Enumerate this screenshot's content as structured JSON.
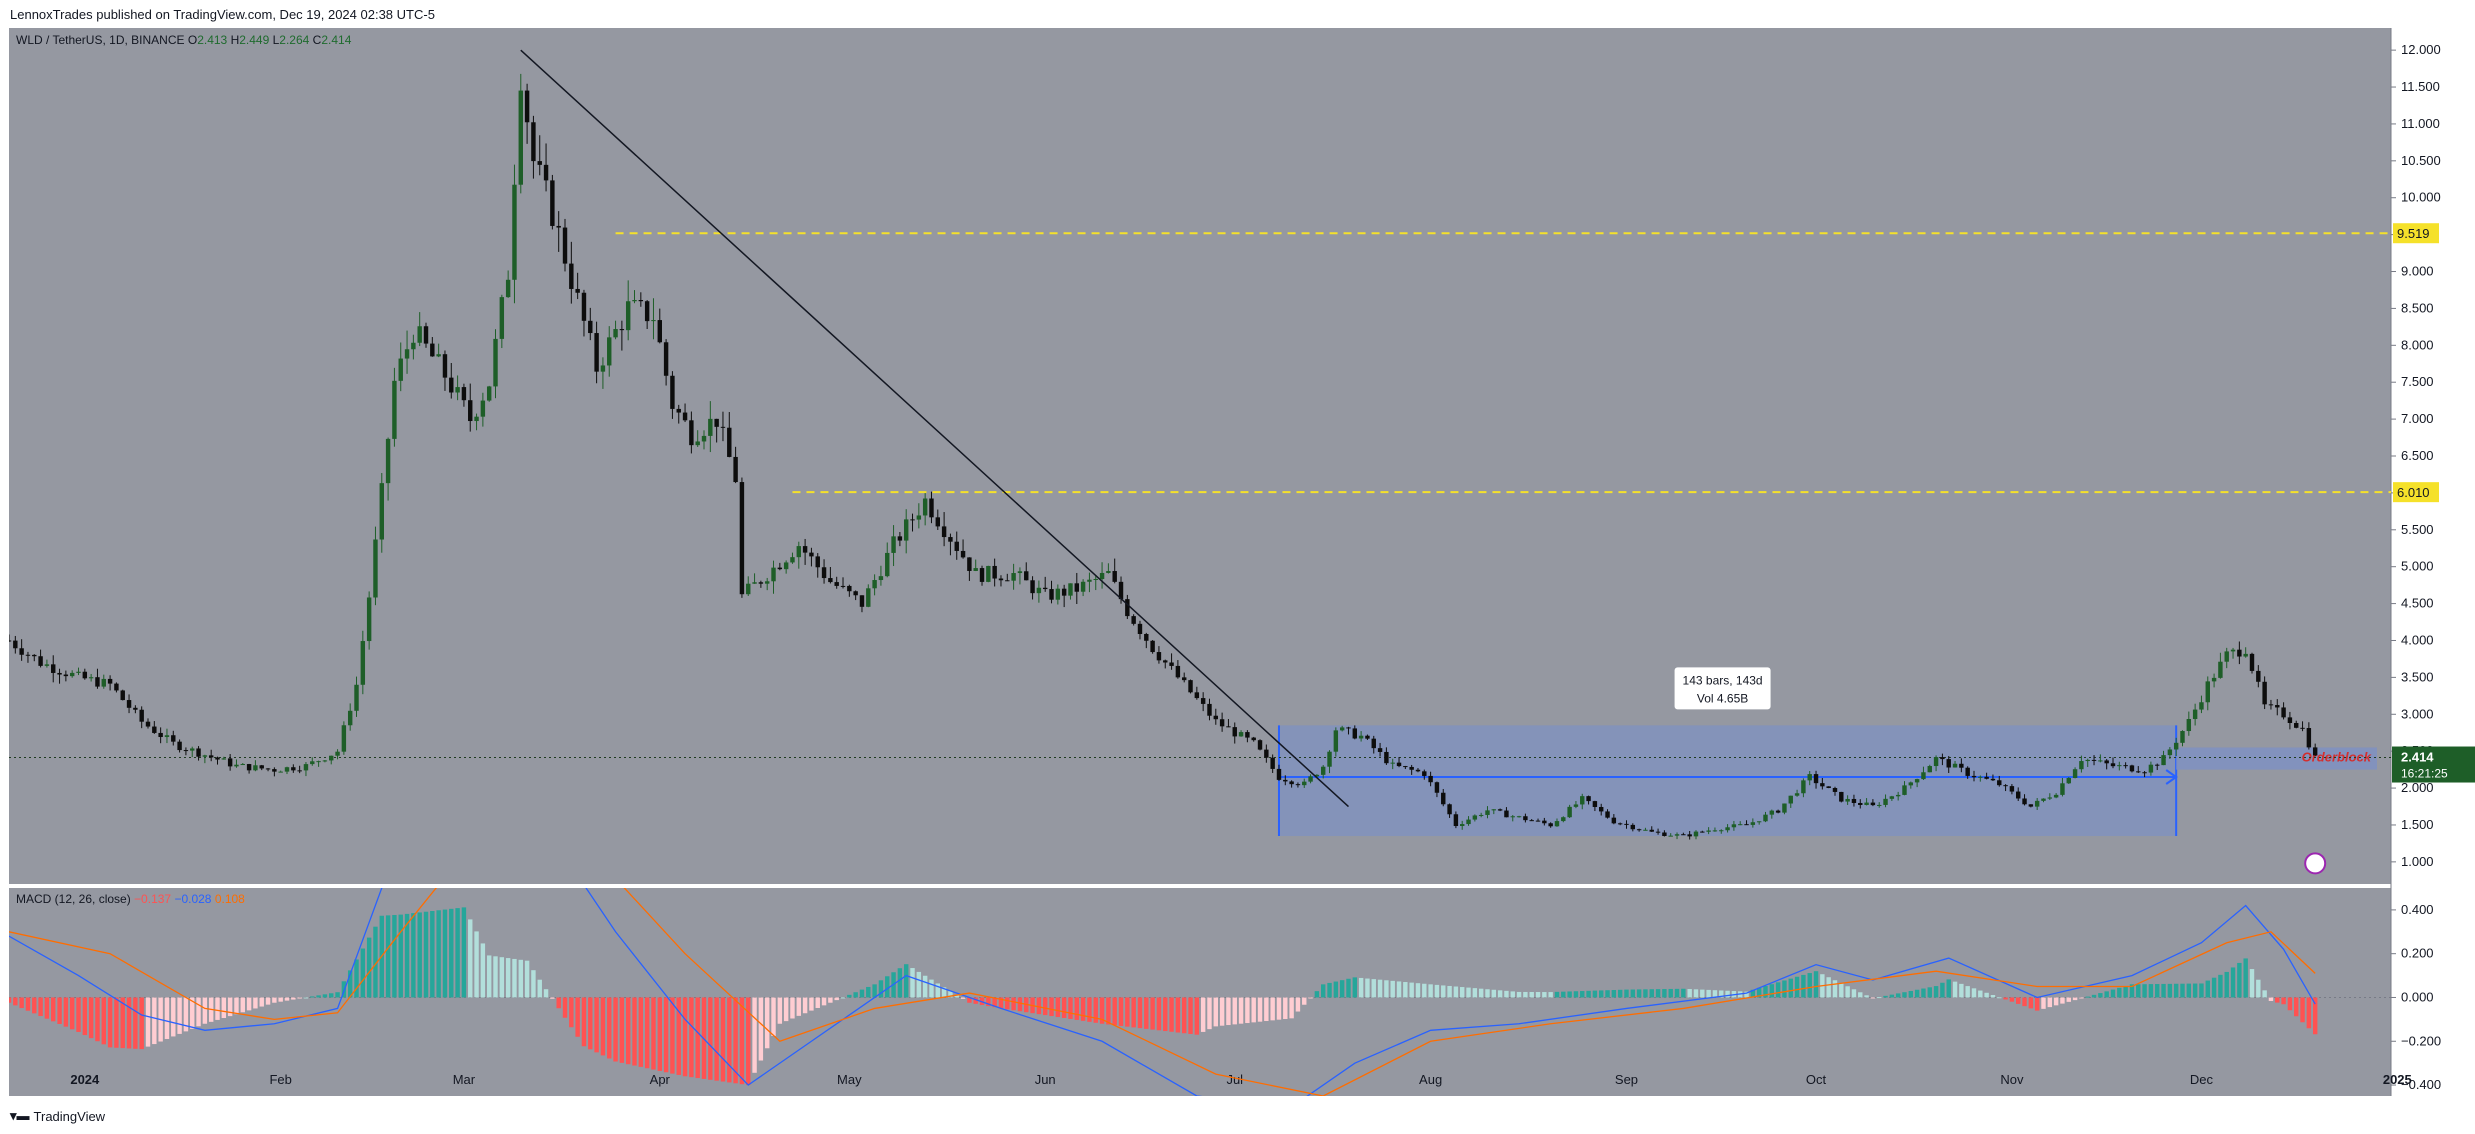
{
  "header": {
    "published": "LennoxTrades published on TradingView.com, Dec 19, 2024 02:38 UTC-5"
  },
  "legend": {
    "symbol": "WLD / TetherUS, 1D, BINANCE",
    "o_label": "O",
    "o_value": "2.413",
    "h_label": "H",
    "h_value": "2.449",
    "l_label": "L",
    "l_value": "2.264",
    "c_label": "C",
    "c_value": "2.414"
  },
  "macd_legend": {
    "label": "MACD (12, 26, close)",
    "hist": "−0.137",
    "macd": "−0.028",
    "signal": "0.108"
  },
  "footer": {
    "brand": "TradingView"
  },
  "colors": {
    "background": "#9598a1",
    "up": "#1e5e28",
    "down": "#0d0d0d",
    "level_line": "#f5e12a",
    "range_box": "#7f91c2",
    "range_border": "#2962ff",
    "macd_line": "#2962ff",
    "signal_line": "#ff6d00",
    "hist_up_strong": "#26a69a",
    "hist_up_weak": "#b2dfdb",
    "hist_down_strong": "#ff5252",
    "hist_down_weak": "#ffcdd2",
    "last_price_bg": "#1e5e28"
  },
  "chart_data": {
    "type": "candlestick",
    "symbol": "WLD / TetherUS",
    "timeframe": "1D",
    "exchange": "BINANCE",
    "x_range": [
      "2023-12-20",
      "2024-12-31"
    ],
    "price_axis": {
      "min": 0.7,
      "max": 12.3,
      "ticks": [
        "12.000",
        "11.500",
        "11.000",
        "10.500",
        "10.000",
        "9.500",
        "9.000",
        "8.500",
        "8.000",
        "7.500",
        "7.000",
        "6.500",
        "6.000",
        "5.500",
        "5.000",
        "4.500",
        "4.000",
        "3.500",
        "3.000",
        "2.500",
        "2.000",
        "1.500",
        "1.000"
      ]
    },
    "time_axis": {
      "labels": [
        {
          "date": "2024-01-01",
          "text": "2024"
        },
        {
          "date": "2024-02-01",
          "text": "Feb"
        },
        {
          "date": "2024-03-01",
          "text": "Mar"
        },
        {
          "date": "2024-04-01",
          "text": "Apr"
        },
        {
          "date": "2024-05-01",
          "text": "May"
        },
        {
          "date": "2024-06-01",
          "text": "Jun"
        },
        {
          "date": "2024-07-01",
          "text": "Jul"
        },
        {
          "date": "2024-08-01",
          "text": "Aug"
        },
        {
          "date": "2024-09-01",
          "text": "Sep"
        },
        {
          "date": "2024-10-01",
          "text": "Oct"
        },
        {
          "date": "2024-11-01",
          "text": "Nov"
        },
        {
          "date": "2024-12-01",
          "text": "Dec"
        },
        {
          "date": "2025-01-01",
          "text": "2025"
        }
      ]
    },
    "close_path": [
      [
        "2023-12-20",
        4.0
      ],
      [
        "2023-12-25",
        3.7
      ],
      [
        "2023-12-31",
        3.5
      ],
      [
        "2024-01-05",
        3.4
      ],
      [
        "2024-01-10",
        2.9
      ],
      [
        "2024-01-15",
        2.6
      ],
      [
        "2024-01-20",
        2.45
      ],
      [
        "2024-01-25",
        2.3
      ],
      [
        "2024-01-31",
        2.25
      ],
      [
        "2024-02-05",
        2.3
      ],
      [
        "2024-02-10",
        2.5
      ],
      [
        "2024-02-13",
        3.4
      ],
      [
        "2024-02-15",
        4.6
      ],
      [
        "2024-02-17",
        6.0
      ],
      [
        "2024-02-19",
        7.5
      ],
      [
        "2024-02-22",
        8.2
      ],
      [
        "2024-02-27",
        7.6
      ],
      [
        "2024-03-02",
        7.0
      ],
      [
        "2024-03-05",
        7.5
      ],
      [
        "2024-03-08",
        9.0
      ],
      [
        "2024-03-10",
        11.7
      ],
      [
        "2024-03-12",
        10.5
      ],
      [
        "2024-03-15",
        9.8
      ],
      [
        "2024-03-19",
        8.6
      ],
      [
        "2024-03-22",
        7.7
      ],
      [
        "2024-03-27",
        8.5
      ],
      [
        "2024-03-31",
        8.4
      ],
      [
        "2024-04-03",
        7.2
      ],
      [
        "2024-04-06",
        6.8
      ],
      [
        "2024-04-10",
        7.0
      ],
      [
        "2024-04-13",
        6.2
      ],
      [
        "2024-04-14",
        4.6
      ],
      [
        "2024-04-18",
        4.9
      ],
      [
        "2024-04-23",
        5.3
      ],
      [
        "2024-04-28",
        4.8
      ],
      [
        "2024-05-03",
        4.5
      ],
      [
        "2024-05-08",
        5.3
      ],
      [
        "2024-05-13",
        5.9
      ],
      [
        "2024-05-17",
        5.4
      ],
      [
        "2024-05-21",
        4.9
      ],
      [
        "2024-05-27",
        4.9
      ],
      [
        "2024-06-01",
        4.6
      ],
      [
        "2024-06-06",
        4.7
      ],
      [
        "2024-06-11",
        4.9
      ],
      [
        "2024-06-14",
        4.4
      ],
      [
        "2024-06-18",
        3.9
      ],
      [
        "2024-06-23",
        3.4
      ],
      [
        "2024-06-28",
        2.9
      ],
      [
        "2024-07-04",
        2.6
      ],
      [
        "2024-07-08",
        2.15
      ],
      [
        "2024-07-12",
        2.05
      ],
      [
        "2024-07-15",
        2.3
      ],
      [
        "2024-07-17",
        2.8
      ],
      [
        "2024-07-21",
        2.7
      ],
      [
        "2024-07-26",
        2.3
      ],
      [
        "2024-07-31",
        2.2
      ],
      [
        "2024-08-05",
        1.5
      ],
      [
        "2024-08-10",
        1.7
      ],
      [
        "2024-08-15",
        1.6
      ],
      [
        "2024-08-20",
        1.5
      ],
      [
        "2024-08-25",
        1.85
      ],
      [
        "2024-08-30",
        1.55
      ],
      [
        "2024-09-05",
        1.4
      ],
      [
        "2024-09-10",
        1.35
      ],
      [
        "2024-09-15",
        1.45
      ],
      [
        "2024-09-20",
        1.5
      ],
      [
        "2024-09-25",
        1.7
      ],
      [
        "2024-09-30",
        2.15
      ],
      [
        "2024-10-05",
        1.85
      ],
      [
        "2024-10-10",
        1.75
      ],
      [
        "2024-10-15",
        2.0
      ],
      [
        "2024-10-20",
        2.4
      ],
      [
        "2024-10-25",
        2.2
      ],
      [
        "2024-10-30",
        2.05
      ],
      [
        "2024-11-04",
        1.75
      ],
      [
        "2024-11-08",
        1.95
      ],
      [
        "2024-11-12",
        2.4
      ],
      [
        "2024-11-17",
        2.3
      ],
      [
        "2024-11-22",
        2.25
      ],
      [
        "2024-11-25",
        2.4
      ],
      [
        "2024-11-29",
        2.9
      ],
      [
        "2024-12-02",
        3.4
      ],
      [
        "2024-12-05",
        3.8
      ],
      [
        "2024-12-08",
        3.9
      ],
      [
        "2024-12-11",
        3.1
      ],
      [
        "2024-12-14",
        3.0
      ],
      [
        "2024-12-17",
        2.8
      ],
      [
        "2024-12-19",
        2.414
      ]
    ],
    "levels": [
      {
        "price": 9.519,
        "label": "9.519"
      },
      {
        "price": 6.01,
        "label": "6.010"
      }
    ],
    "trendline": {
      "from": [
        "2024-03-10",
        12.0
      ],
      "to": [
        "2024-07-19",
        1.75
      ]
    },
    "range_box": {
      "from": "2024-07-08",
      "to": "2024-11-27",
      "top": 2.85,
      "bottom": 1.35,
      "arrow_price": 2.15
    },
    "range_tooltip": {
      "line1": "143 bars, 143d",
      "line2": "Vol 4.65B"
    },
    "orderblock": {
      "from": "2024-11-27",
      "to": "2024-12-31",
      "top": 2.55,
      "bottom": 2.25,
      "label": "Orderblock"
    },
    "last_price": {
      "value": "2.414",
      "countdown": "16:21:25",
      "price": 2.414
    },
    "macd": {
      "params": "12, 26, close",
      "axis_ticks": [
        "0.400",
        "0.200",
        "0.000",
        "−0.200",
        "−0.400"
      ],
      "axis_min": -0.45,
      "axis_max": 0.5,
      "macd_path": [
        [
          "2023-12-20",
          0.28
        ],
        [
          "2023-12-31",
          0.1
        ],
        [
          "2024-01-10",
          -0.08
        ],
        [
          "2024-01-20",
          -0.15
        ],
        [
          "2024-01-31",
          -0.12
        ],
        [
          "2024-02-10",
          -0.05
        ],
        [
          "2024-02-17",
          0.5
        ],
        [
          "2024-03-01",
          1.0
        ],
        [
          "2024-03-11",
          0.9
        ],
        [
          "2024-03-25",
          0.3
        ],
        [
          "2024-04-05",
          -0.1
        ],
        [
          "2024-04-15",
          -0.4
        ],
        [
          "2024-04-25",
          -0.2
        ],
        [
          "2024-05-10",
          0.1
        ],
        [
          "2024-05-25",
          -0.05
        ],
        [
          "2024-06-10",
          -0.2
        ],
        [
          "2024-06-25",
          -0.45
        ],
        [
          "2024-07-10",
          -0.5
        ],
        [
          "2024-07-20",
          -0.3
        ],
        [
          "2024-08-01",
          -0.15
        ],
        [
          "2024-08-15",
          -0.12
        ],
        [
          "2024-09-01",
          -0.05
        ],
        [
          "2024-09-20",
          0.02
        ],
        [
          "2024-10-01",
          0.15
        ],
        [
          "2024-10-10",
          0.08
        ],
        [
          "2024-10-22",
          0.18
        ],
        [
          "2024-11-05",
          0.0
        ],
        [
          "2024-11-20",
          0.1
        ],
        [
          "2024-12-01",
          0.25
        ],
        [
          "2024-12-08",
          0.42
        ],
        [
          "2024-12-14",
          0.22
        ],
        [
          "2024-12-19",
          -0.03
        ]
      ],
      "signal_path": [
        [
          "2023-12-20",
          0.3
        ],
        [
          "2024-01-05",
          0.2
        ],
        [
          "2024-01-20",
          -0.05
        ],
        [
          "2024-01-31",
          -0.1
        ],
        [
          "2024-02-10",
          -0.07
        ],
        [
          "2024-02-20",
          0.3
        ],
        [
          "2024-03-05",
          0.8
        ],
        [
          "2024-03-20",
          0.7
        ],
        [
          "2024-04-05",
          0.2
        ],
        [
          "2024-04-20",
          -0.2
        ],
        [
          "2024-05-05",
          -0.05
        ],
        [
          "2024-05-20",
          0.02
        ],
        [
          "2024-06-10",
          -0.1
        ],
        [
          "2024-06-28",
          -0.35
        ],
        [
          "2024-07-15",
          -0.45
        ],
        [
          "2024-08-01",
          -0.2
        ],
        [
          "2024-08-20",
          -0.12
        ],
        [
          "2024-09-10",
          -0.05
        ],
        [
          "2024-10-01",
          0.05
        ],
        [
          "2024-10-20",
          0.12
        ],
        [
          "2024-11-05",
          0.05
        ],
        [
          "2024-11-20",
          0.05
        ],
        [
          "2024-12-05",
          0.25
        ],
        [
          "2024-12-12",
          0.3
        ],
        [
          "2024-12-19",
          0.11
        ]
      ]
    }
  }
}
